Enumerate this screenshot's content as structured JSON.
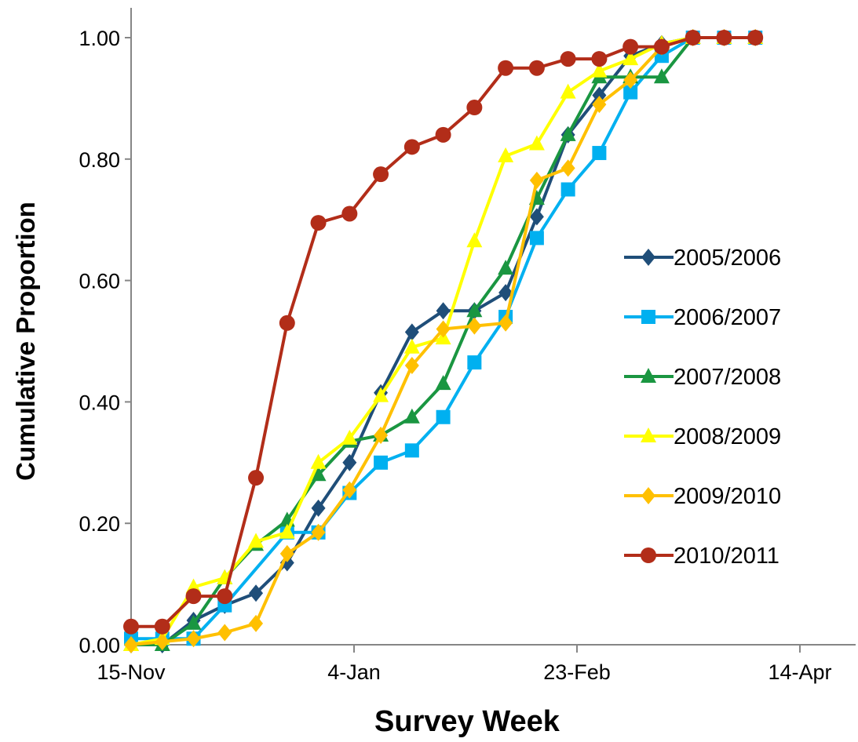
{
  "chart_data": {
    "type": "line",
    "title": "",
    "xlabel": "Survey Week",
    "ylabel": "Cumulative Proportion",
    "x_ticks": [
      "15-Nov",
      "4-Jan",
      "23-Feb",
      "14-Apr"
    ],
    "x_tick_dates": [
      "2000-11-15",
      "2001-01-04",
      "2001-02-23",
      "2001-04-14"
    ],
    "xlim": [
      "2000-11-15",
      "2001-05-01"
    ],
    "y_ticks": [
      "0.00",
      "0.20",
      "0.40",
      "0.60",
      "0.80",
      "1.00"
    ],
    "ylim": [
      0,
      1
    ],
    "grid": false,
    "legend_position": "right",
    "x": [
      "2000-11-15",
      "2000-11-22",
      "2000-11-29",
      "2000-12-06",
      "2000-12-13",
      "2000-12-20",
      "2000-12-27",
      "2001-01-03",
      "2001-01-10",
      "2001-01-17",
      "2001-01-24",
      "2001-01-31",
      "2001-02-07",
      "2001-02-14",
      "2001-02-21",
      "2001-02-28",
      "2001-03-07",
      "2001-03-14",
      "2001-03-21",
      "2001-03-28",
      "2001-04-04"
    ],
    "series": [
      {
        "name": "2005/2006",
        "color": "#1f4e79",
        "marker": "diamond",
        "values": [
          0.0,
          0.0,
          0.04,
          0.065,
          0.085,
          0.135,
          0.225,
          0.3,
          0.415,
          0.515,
          0.55,
          0.55,
          0.58,
          0.705,
          0.84,
          0.905,
          0.97,
          0.99,
          1.0,
          1.0,
          1.0
        ]
      },
      {
        "name": "2006/2007",
        "color": "#00b0f0",
        "marker": "square",
        "values": [
          0.01,
          0.01,
          0.01,
          0.065,
          null,
          0.185,
          0.185,
          0.25,
          0.3,
          0.32,
          0.375,
          0.465,
          0.54,
          0.67,
          0.75,
          0.81,
          0.91,
          0.97,
          1.0,
          1.0,
          1.0
        ]
      },
      {
        "name": "2007/2008",
        "color": "#1a9641",
        "marker": "triangle",
        "values": [
          0.0,
          0.0,
          0.035,
          0.11,
          0.165,
          0.205,
          0.28,
          0.335,
          0.345,
          0.375,
          0.43,
          0.55,
          0.62,
          0.735,
          0.84,
          0.935,
          0.935,
          0.935,
          1.0,
          1.0,
          1.0
        ]
      },
      {
        "name": "2008/2009",
        "color": "#ffff00",
        "marker": "triangle",
        "values": [
          0.0,
          0.01,
          0.095,
          0.11,
          0.17,
          0.185,
          0.3,
          0.34,
          0.41,
          0.49,
          0.505,
          0.665,
          0.805,
          0.825,
          0.91,
          0.945,
          0.965,
          0.99,
          1.0,
          1.0,
          1.0
        ]
      },
      {
        "name": "2009/2010",
        "color": "#ffc000",
        "marker": "diamond",
        "values": [
          0.0,
          0.005,
          0.01,
          0.02,
          0.035,
          0.15,
          0.185,
          0.255,
          0.345,
          0.46,
          0.52,
          0.525,
          0.53,
          0.765,
          0.785,
          0.89,
          0.93,
          0.985,
          1.0,
          1.0,
          1.0
        ]
      },
      {
        "name": "2010/2011",
        "color": "#b22d19",
        "marker": "circle",
        "values": [
          0.03,
          0.03,
          0.08,
          0.08,
          0.275,
          0.53,
          0.695,
          0.71,
          0.775,
          0.82,
          0.84,
          0.885,
          0.95,
          0.95,
          0.965,
          0.965,
          0.985,
          0.985,
          1.0,
          1.0,
          1.0
        ]
      }
    ]
  }
}
